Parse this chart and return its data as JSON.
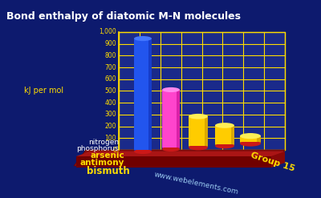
{
  "title": "Bond enthalpy of diatomic M-N molecules",
  "ylabel": "kJ per mol",
  "xlabel": "Group 15",
  "background_color": "#0d1a6e",
  "categories": [
    "nitrogen",
    "phosphorus",
    "arsenic",
    "antimony",
    "bismuth"
  ],
  "values": [
    945,
    490,
    250,
    160,
    50
  ],
  "bar_colors": [
    "#2255dd",
    "#ff44cc",
    "#ffcc00",
    "#ffcc00",
    "#ffcc00"
  ],
  "bar_colors_dark": [
    "#1133aa",
    "#cc2299",
    "#cc9900",
    "#cc9900",
    "#cc9900"
  ],
  "ylim": [
    0,
    1000
  ],
  "yticks": [
    0,
    100,
    200,
    300,
    400,
    500,
    600,
    700,
    800,
    900,
    1000
  ],
  "ytick_labels": [
    "0",
    "100",
    "200",
    "300",
    "400",
    "500",
    "600",
    "700",
    "800",
    "900",
    "1,000"
  ],
  "grid_color": "#ffdd00",
  "base_color": "#8B1010",
  "text_color": "#ffdd00",
  "watermark": "www.webelements.com",
  "title_color": "#ffffff",
  "label_colors": [
    "#ffffff",
    "#ffffff",
    "#ffdd00",
    "#ffdd00",
    "#ffdd00"
  ]
}
